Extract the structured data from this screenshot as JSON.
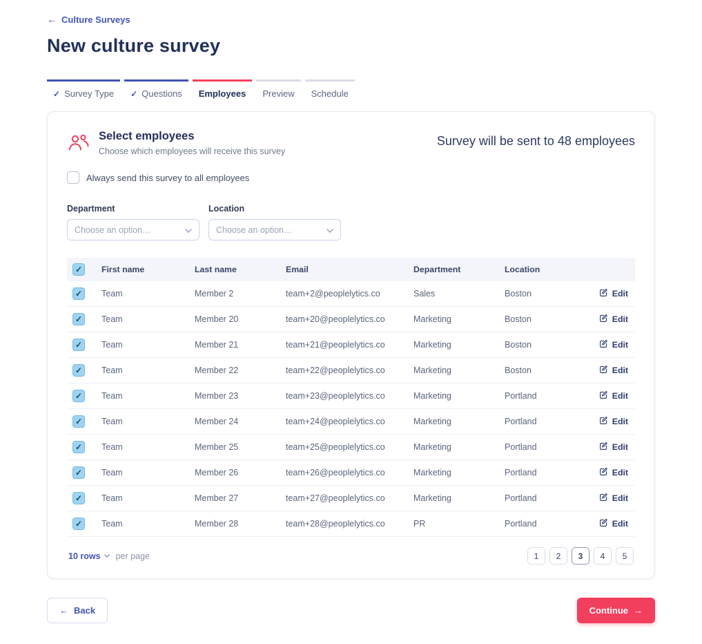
{
  "colors": {
    "accent_pink": "#f23f5d",
    "accent_indigo": "#4254b5",
    "checkbox_blue": "#9fd4f1",
    "title_navy": "#233059"
  },
  "icons": {
    "check": "✓",
    "back_arrow": "←",
    "forward_arrow": "→"
  },
  "header": {
    "back_label": "Culture Surveys",
    "title": "New culture survey"
  },
  "steps": [
    {
      "label": "Survey Type",
      "state": "complete"
    },
    {
      "label": "Questions",
      "state": "complete"
    },
    {
      "label": "Employees",
      "state": "active"
    },
    {
      "label": "Preview",
      "state": "upcoming"
    },
    {
      "label": "Schedule",
      "state": "upcoming"
    }
  ],
  "card": {
    "section_title": "Select employees",
    "section_subtitle": "Choose which employees will receive this survey",
    "summary": "Survey will be sent to 48 employees",
    "send_all_label": "Always send this survey to all employees",
    "filters": {
      "department": {
        "label": "Department",
        "placeholder": "Choose an option…"
      },
      "location": {
        "label": "Location",
        "placeholder": "Choose an option…"
      }
    }
  },
  "table": {
    "columns": {
      "first_name": "First name",
      "last_name": "Last name",
      "email": "Email",
      "department": "Department",
      "location": "Location"
    },
    "edit_label": "Edit",
    "rows": [
      {
        "first_name": "Team",
        "last_name": "Member 2",
        "email": "team+2@peoplelytics.co",
        "department": "Sales",
        "location": "Boston"
      },
      {
        "first_name": "Team",
        "last_name": "Member 20",
        "email": "team+20@peoplelytics.co",
        "department": "Marketing",
        "location": "Boston"
      },
      {
        "first_name": "Team",
        "last_name": "Member 21",
        "email": "team+21@peoplelytics.co",
        "department": "Marketing",
        "location": "Boston"
      },
      {
        "first_name": "Team",
        "last_name": "Member 22",
        "email": "team+22@peoplelytics.co",
        "department": "Marketing",
        "location": "Boston"
      },
      {
        "first_name": "Team",
        "last_name": "Member 23",
        "email": "team+23@peoplelytics.co",
        "department": "Marketing",
        "location": "Portland"
      },
      {
        "first_name": "Team",
        "last_name": "Member 24",
        "email": "team+24@peoplelytics.co",
        "department": "Marketing",
        "location": "Portland"
      },
      {
        "first_name": "Team",
        "last_name": "Member 25",
        "email": "team+25@peoplelytics.co",
        "department": "Marketing",
        "location": "Portland"
      },
      {
        "first_name": "Team",
        "last_name": "Member 26",
        "email": "team+26@peoplelytics.co",
        "department": "Marketing",
        "location": "Portland"
      },
      {
        "first_name": "Team",
        "last_name": "Member 27",
        "email": "team+27@peoplelytics.co",
        "department": "Marketing",
        "location": "Portland"
      },
      {
        "first_name": "Team",
        "last_name": "Member 28",
        "email": "team+28@peoplelytics.co",
        "department": "PR",
        "location": "Portland"
      }
    ]
  },
  "footer": {
    "rows_select": "10 rows",
    "per_page": "per page",
    "pages": [
      "1",
      "2",
      "3",
      "4",
      "5"
    ],
    "active_page": "3"
  },
  "actions": {
    "back": "Back",
    "continue": "Continue"
  }
}
